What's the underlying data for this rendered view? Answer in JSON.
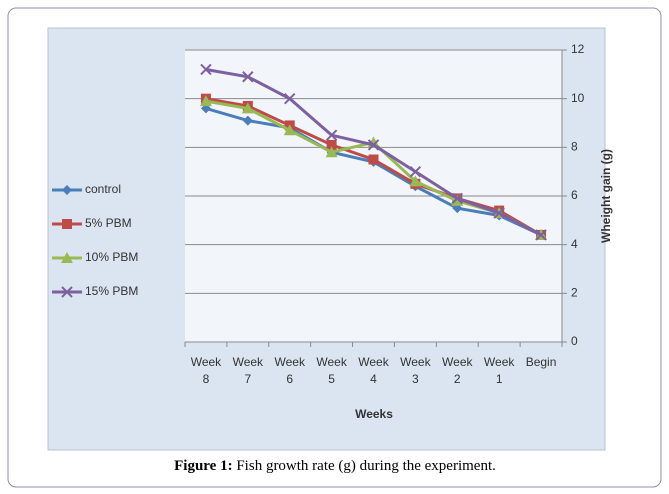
{
  "chart_data": {
    "type": "line",
    "x_label": "Weeks",
    "y_label": "Wheight gain (g)",
    "caption": {
      "label": "Figure 1:",
      "text": " Fish growth rate (g) during the experiment."
    },
    "categories": [
      "Week 8",
      "Week 7",
      "Week 6",
      "Week 5",
      "Week 4",
      "Week 3",
      "Week 2",
      "Week 1",
      "Begin"
    ],
    "series": [
      {
        "name": "control",
        "color": "#4a7ebb",
        "marker": "diamond",
        "values": [
          9.6,
          9.1,
          8.8,
          7.8,
          7.4,
          6.4,
          5.5,
          5.2,
          4.4
        ]
      },
      {
        "name": "5% PBM",
        "color": "#be4b48",
        "marker": "square",
        "values": [
          10.0,
          9.7,
          8.9,
          8.1,
          7.5,
          6.5,
          5.9,
          5.4,
          4.4
        ]
      },
      {
        "name": "10% PBM",
        "color": "#98b954",
        "marker": "triangle",
        "values": [
          9.9,
          9.6,
          8.7,
          7.8,
          8.2,
          6.6,
          5.8,
          5.3,
          4.4
        ]
      },
      {
        "name": "15% PBM",
        "color": "#7d60a0",
        "marker": "x",
        "values": [
          11.2,
          10.9,
          10.0,
          8.5,
          8.1,
          7.0,
          5.9,
          5.3,
          4.4
        ]
      }
    ],
    "ylim": [
      0,
      12
    ],
    "yticks": [
      0,
      2,
      4,
      6,
      8,
      10,
      12
    ],
    "grid": true,
    "legend": "left"
  }
}
